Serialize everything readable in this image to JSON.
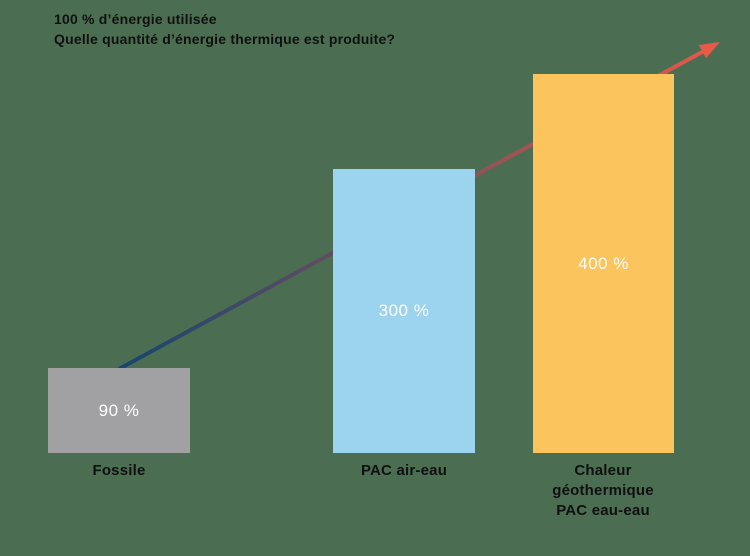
{
  "title": {
    "line1": "100 % d’énergie utilisée",
    "line2": "Quelle quantité d’énergie thermique est produite?"
  },
  "chart_data": {
    "type": "bar",
    "title": "100 % d’énergie utilisée — Quelle quantité d’énergie thermique est produite?",
    "categories": [
      "Fossile",
      "PAC air-eau",
      "Chaleur géothermique PAC eau-eau"
    ],
    "values": [
      90,
      300,
      400
    ],
    "value_labels": [
      "90 %",
      "300 %",
      "400 %"
    ],
    "unit": "%",
    "ylim": [
      0,
      420
    ],
    "xlabel": "",
    "ylabel": "",
    "grid": false,
    "legend": false,
    "bar_colors": [
      "#a1a1a3",
      "#9cd3ee",
      "#fbc45c"
    ],
    "annotation": {
      "type": "trend-arrow",
      "description": "straight gradient arrow rising from the Fossile bar, passing behind the PAC air-eau bar and ending above the geothermal bar",
      "color_start": "#17456e",
      "color_end": "#e8594a"
    }
  },
  "bars": [
    {
      "label": "Fossile",
      "value_label": "90 %",
      "label_lines": [
        "Fossile"
      ]
    },
    {
      "label": "PAC air-eau",
      "value_label": "300 %",
      "label_lines": [
        "PAC air-eau"
      ]
    },
    {
      "label": "Chaleur géothermique PAC eau-eau",
      "value_label": "400 %",
      "label_lines": [
        "Chaleur",
        "géothermique",
        "PAC eau-eau"
      ]
    }
  ],
  "colors": {
    "background": "#4b6e52",
    "title_text": "#101010",
    "label_text": "#101010",
    "value_text": "#ffffff"
  }
}
